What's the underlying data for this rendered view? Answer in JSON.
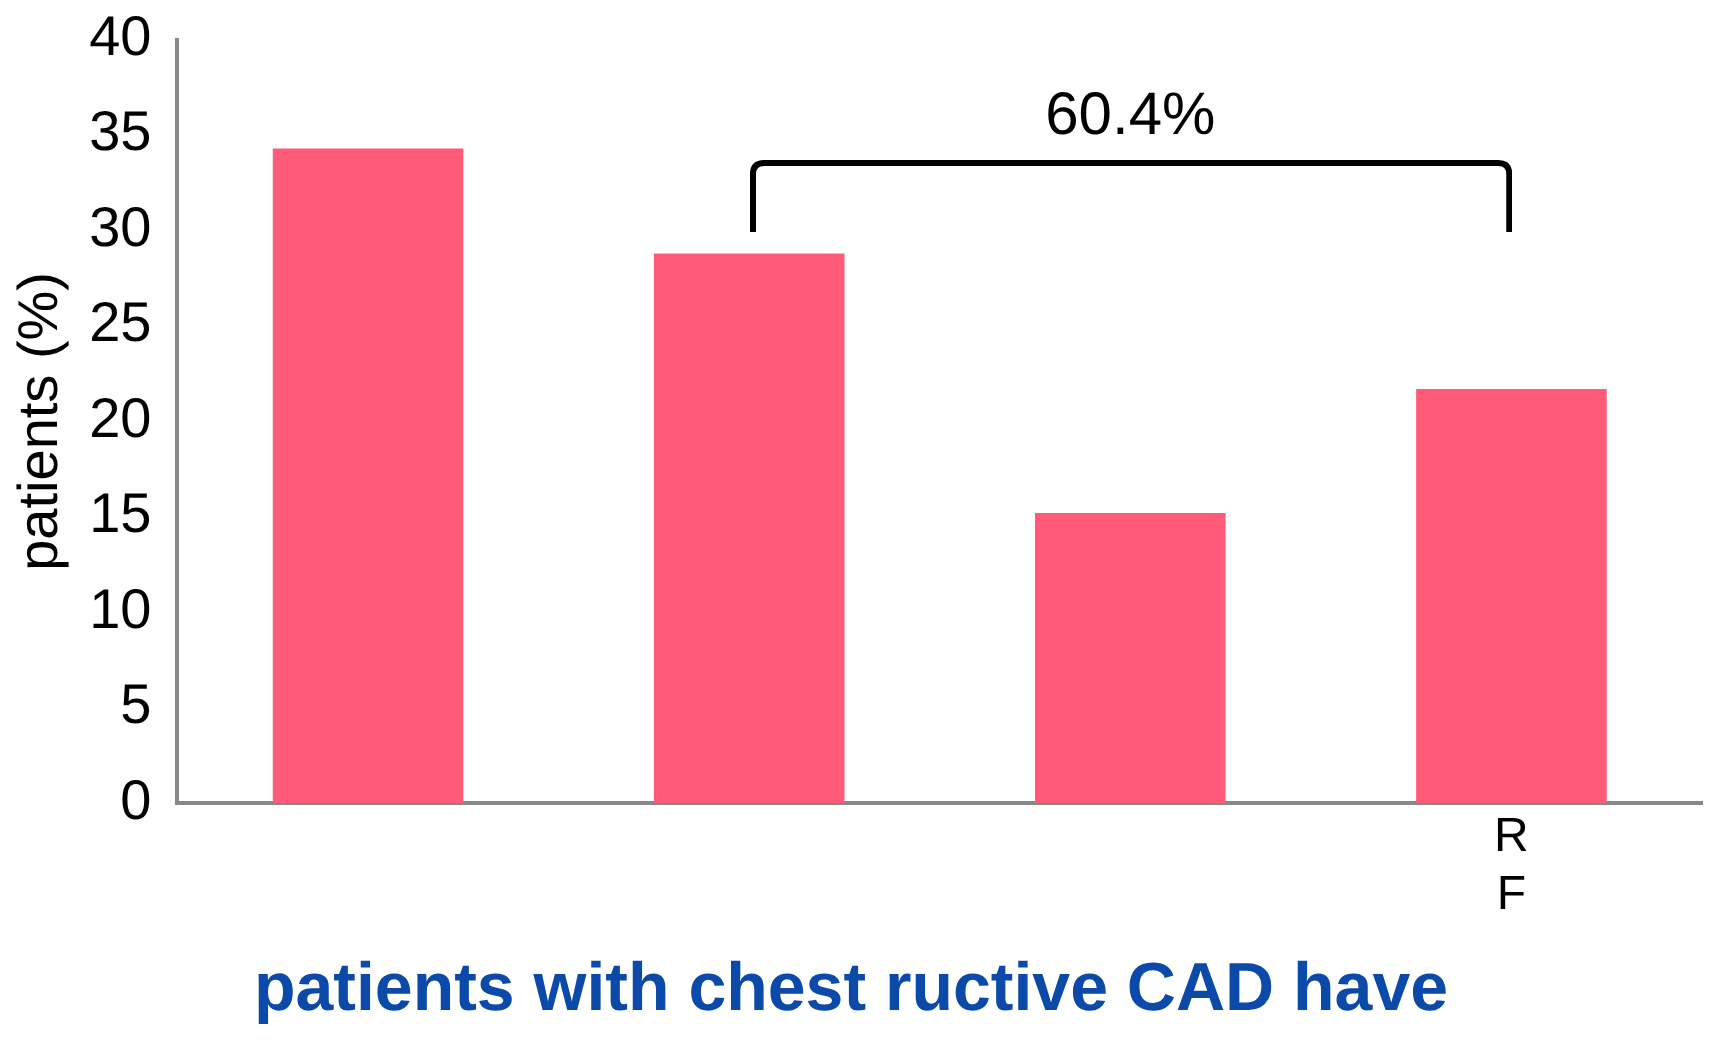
{
  "chart_data": {
    "type": "bar",
    "title": "patients with chest ructive CAD have",
    "ylabel": "patients (%)",
    "categories": [
      null,
      null,
      null,
      "R F"
    ],
    "values": [
      34.3,
      28.8,
      15.2,
      21.7
    ],
    "color": "#ff5a78",
    "ylim": [
      0,
      40
    ],
    "yticks": [
      0,
      5,
      10,
      15,
      20,
      25,
      30,
      35,
      40
    ],
    "grid": false,
    "legend": false,
    "annotations": [
      "60.4%"
    ]
  }
}
